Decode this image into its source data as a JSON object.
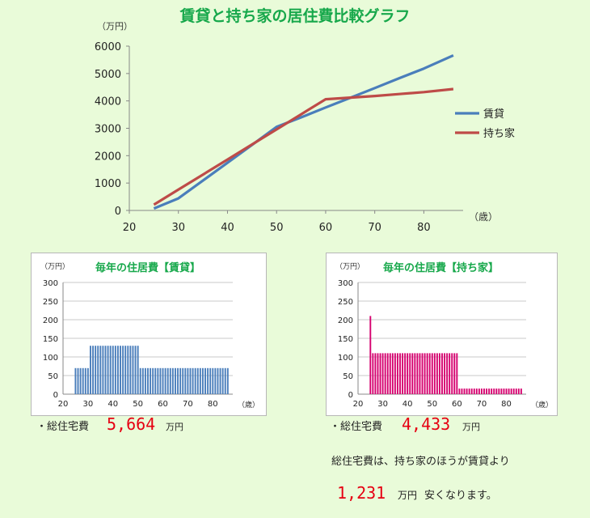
{
  "title": "賃貸と持ち家の居住費比較グラフ",
  "main_chart_units": {
    "y": "（万円）",
    "x": "（歳）"
  },
  "chart_data": [
    {
      "type": "line",
      "title": "",
      "ylabel": "（万円）",
      "xlabel": "（歳）",
      "xlim": [
        20,
        88
      ],
      "ylim": [
        0,
        6000
      ],
      "xticks": [
        20,
        30,
        40,
        50,
        60,
        70,
        80
      ],
      "yticks": [
        0,
        1000,
        2000,
        3000,
        4000,
        5000,
        6000
      ],
      "grid": false,
      "legend": "right",
      "series": [
        {
          "name": "賃貸",
          "color": "#4a7ebb",
          "points": [
            [
              25,
              70
            ],
            [
              30,
              440
            ],
            [
              35,
              1090
            ],
            [
              40,
              1740
            ],
            [
              45,
              2390
            ],
            [
              50,
              3050
            ],
            [
              55,
              3400
            ],
            [
              60,
              3760
            ],
            [
              65,
              4110
            ],
            [
              70,
              4470
            ],
            [
              75,
              4830
            ],
            [
              80,
              5180
            ],
            [
              86,
              5664
            ]
          ]
        },
        {
          "name": "持ち家",
          "color": "#be4b48",
          "points": [
            [
              25,
              210
            ],
            [
              30,
              760
            ],
            [
              35,
              1310
            ],
            [
              40,
              1860
            ],
            [
              45,
              2410
            ],
            [
              50,
              2960
            ],
            [
              55,
              3510
            ],
            [
              60,
              4060
            ],
            [
              65,
              4120
            ],
            [
              70,
              4180
            ],
            [
              75,
              4250
            ],
            [
              80,
              4320
            ],
            [
              86,
              4433
            ]
          ]
        }
      ]
    },
    {
      "type": "bar",
      "title": "毎年の住居費【賃貸】",
      "ylabel": "（万円）",
      "xlabel": "（歳）",
      "ylim": [
        0,
        300
      ],
      "xlim": [
        20,
        88
      ],
      "xticks": [
        20,
        30,
        40,
        50,
        60,
        70,
        80
      ],
      "yticks": [
        0,
        50,
        100,
        150,
        200,
        250,
        300
      ],
      "color": "#4a7ebb",
      "segments": [
        {
          "from": 25,
          "to": 30,
          "value": 70
        },
        {
          "from": 31,
          "to": 50,
          "value": 130
        },
        {
          "from": 51,
          "to": 86,
          "value": 70
        }
      ]
    },
    {
      "type": "bar",
      "title": "毎年の住居費【持ち家】",
      "ylabel": "（万円）",
      "xlabel": "（歳）",
      "ylim": [
        0,
        300
      ],
      "xlim": [
        20,
        88
      ],
      "xticks": [
        20,
        30,
        40,
        50,
        60,
        70,
        80
      ],
      "yticks": [
        0,
        50,
        100,
        150,
        200,
        250,
        300
      ],
      "color": "#d6006f",
      "segments": [
        {
          "from": 25,
          "to": 25,
          "value": 210
        },
        {
          "from": 26,
          "to": 60,
          "value": 110
        },
        {
          "from": 61,
          "to": 86,
          "value": 15
        }
      ]
    }
  ],
  "rent": {
    "total_label": "・総住宅費",
    "total_value": "5,664",
    "unit": "万円"
  },
  "own": {
    "total_label": "・総住宅費",
    "total_value": "4,433",
    "unit": "万円"
  },
  "summary": {
    "line1": "総住宅費は、持ち家のほうが賃貸より",
    "diff_value": "1,231",
    "unit": "万円",
    "tail": "安くなります。"
  }
}
